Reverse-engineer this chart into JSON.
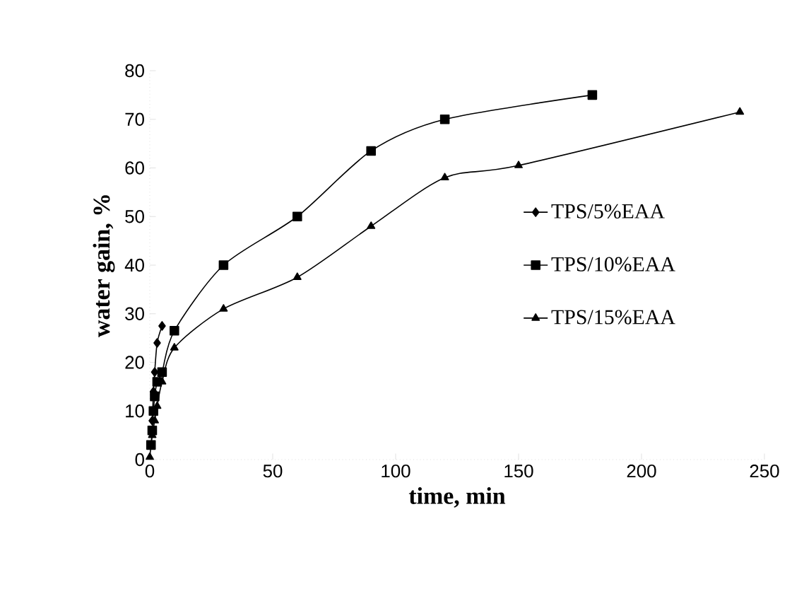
{
  "chart_data": {
    "type": "line",
    "xlabel": "time, min",
    "ylabel": "water gain, %",
    "xlim": [
      0,
      250
    ],
    "ylim": [
      0,
      80
    ],
    "xticks": [
      0,
      50,
      100,
      150,
      200,
      250
    ],
    "yticks": [
      0,
      10,
      20,
      30,
      40,
      50,
      60,
      70,
      80
    ],
    "legend": "right",
    "grid": false,
    "line_style": "solid",
    "series": [
      {
        "name": "TPS/5%EAA",
        "color": "#000000",
        "marker": "diamond",
        "x": [
          1,
          1.5,
          2,
          3,
          5
        ],
        "values": [
          8,
          14,
          18,
          24,
          27.5
        ]
      },
      {
        "name": "TPS/10%EAA",
        "color": "#000000",
        "marker": "square",
        "x": [
          0.5,
          1,
          1.5,
          2,
          3,
          5,
          10,
          30,
          60,
          90,
          120,
          180
        ],
        "values": [
          3,
          6,
          10,
          13,
          16,
          18,
          26.5,
          40,
          50,
          63.5,
          70,
          75
        ]
      },
      {
        "name": "TPS/15%EAA",
        "color": "#000000",
        "marker": "triangle",
        "x": [
          0,
          1,
          2,
          3,
          5,
          10,
          30,
          60,
          90,
          120,
          150,
          240
        ],
        "values": [
          0.5,
          5,
          8,
          11,
          16,
          23,
          31,
          37.5,
          48,
          58,
          60.5,
          71.5
        ]
      }
    ]
  }
}
